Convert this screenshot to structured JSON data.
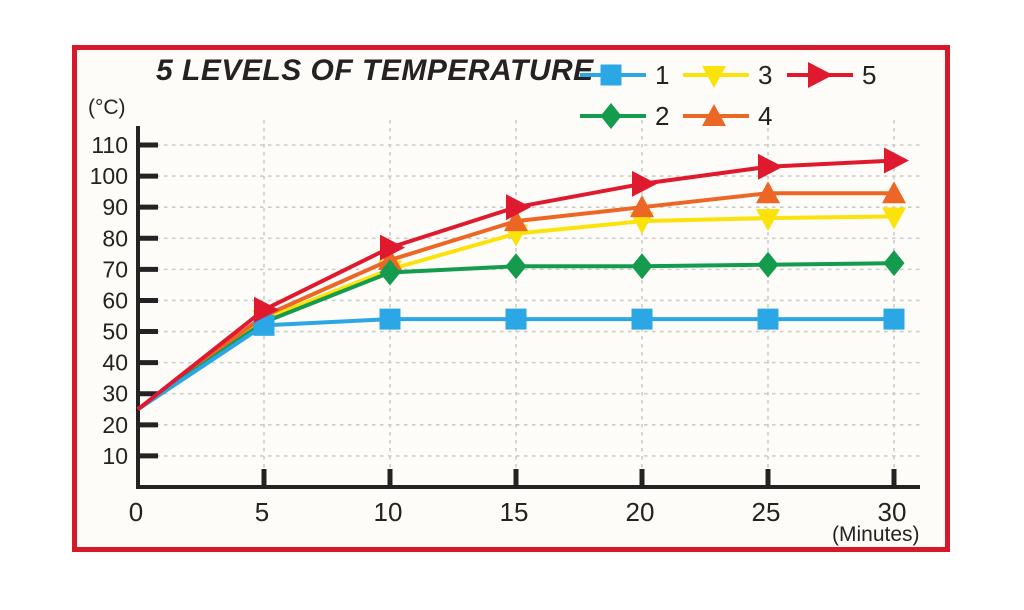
{
  "title": "5 LEVELS OF TEMPERATURE",
  "frame": {
    "border_color": "#D7182A",
    "background": "#FEFCF8"
  },
  "chart_data": {
    "type": "line",
    "title": "5 LEVELS OF TEMPERATURE",
    "xlabel": "(Minutes)",
    "ylabel": "(°C)",
    "x": [
      0,
      5,
      10,
      15,
      20,
      25,
      30
    ],
    "x_tick_labels": [
      "0",
      "5",
      "10",
      "15",
      "20",
      "25",
      "30"
    ],
    "y_ticks": [
      10,
      20,
      30,
      40,
      50,
      60,
      70,
      80,
      90,
      100,
      110
    ],
    "xlim": [
      0,
      31
    ],
    "ylim": [
      0,
      115
    ],
    "grid": true,
    "legend_position": "top-right",
    "legend_rows": [
      [
        "1",
        "3",
        "5"
      ],
      [
        "2",
        "4"
      ]
    ],
    "series": [
      {
        "name": "1",
        "marker": "square",
        "color": "#2BA7E5",
        "values": [
          25,
          52,
          54,
          54,
          54,
          54,
          54
        ]
      },
      {
        "name": "2",
        "marker": "diamond",
        "color": "#149B4D",
        "values": [
          25,
          53,
          69,
          71,
          71,
          71.5,
          72
        ]
      },
      {
        "name": "3",
        "marker": "triangle-down",
        "color": "#FBE20A",
        "values": [
          25,
          54,
          70,
          81.5,
          85.5,
          86.5,
          87
        ]
      },
      {
        "name": "4",
        "marker": "triangle-up",
        "color": "#EC6625",
        "values": [
          25,
          55,
          73,
          85.5,
          90,
          94.5,
          94.5
        ]
      },
      {
        "name": "5",
        "marker": "arrow-right",
        "color": "#E01A2E",
        "values": [
          25,
          57,
          77,
          90,
          97.5,
          103,
          105
        ]
      }
    ],
    "draw_order": [
      "3",
      "4",
      "2",
      "1",
      "5"
    ],
    "axis_color": "#262223",
    "grid_color": "#CBCBCB",
    "text_color": "#262223"
  }
}
